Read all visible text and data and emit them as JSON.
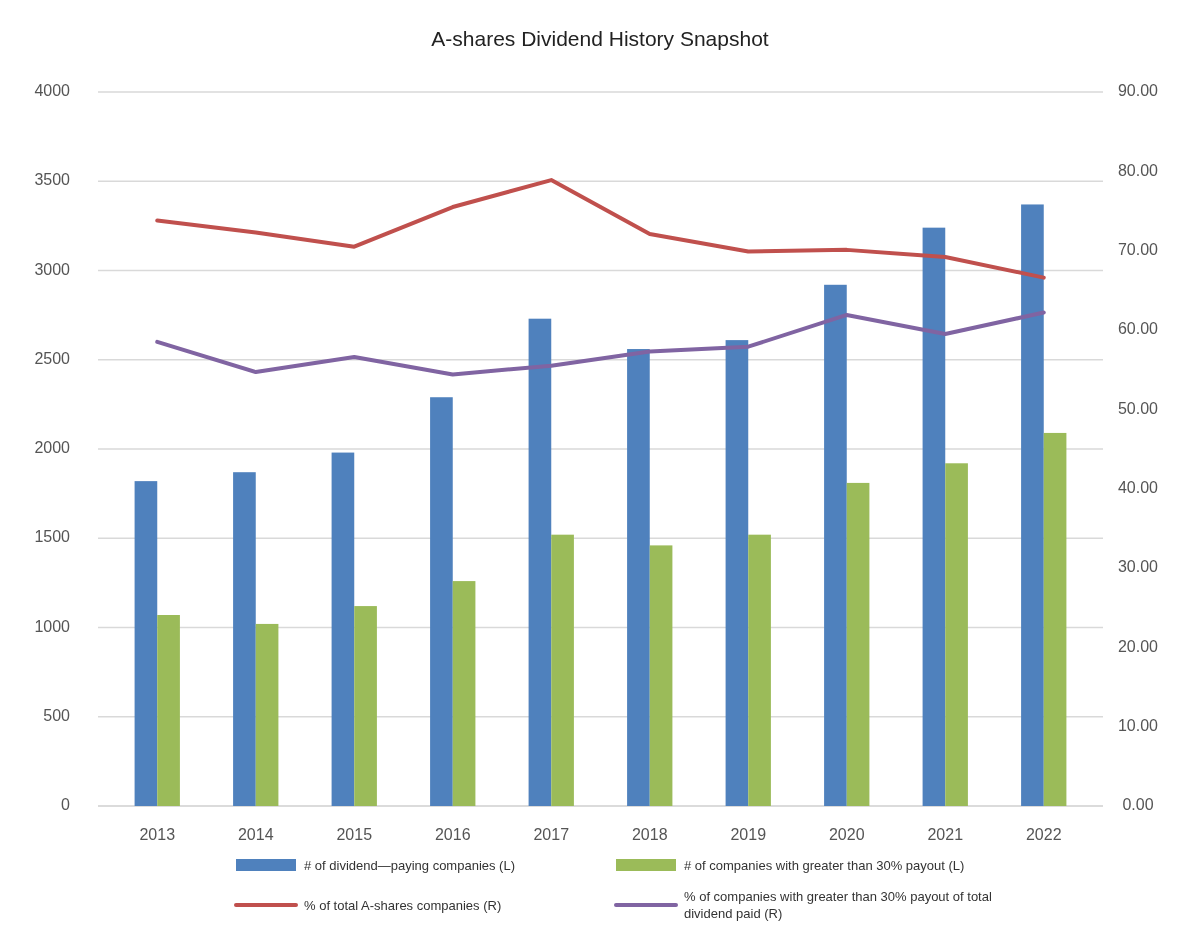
{
  "chart_data": {
    "type": "bar",
    "title": "A-shares Dividend History Snapshot",
    "categories": [
      "2013",
      "2014",
      "2015",
      "2016",
      "2017",
      "2018",
      "2019",
      "2020",
      "2021",
      "2022"
    ],
    "series": [
      {
        "name": "# of dividend—paying companies (L)",
        "color": "#4f81bd",
        "values": [
          1820,
          1870,
          1980,
          2290,
          2730,
          2560,
          2610,
          2920,
          3240,
          3370
        ]
      },
      {
        "name": "# of companies with greater than 30% payout (L)",
        "color": "#9bbb59",
        "values": [
          1070,
          1020,
          1120,
          1260,
          1520,
          1460,
          1520,
          1810,
          1920,
          2090
        ]
      },
      {
        "name": "% of total A-shares companies (R)",
        "type": "line",
        "axis": "y2",
        "color": "#c0504d",
        "values": [
          73.8,
          72.3,
          70.5,
          75.5,
          78.9,
          72.1,
          69.9,
          70.1,
          69.2,
          66.6
        ]
      },
      {
        "name": "% of companies with greater than 30% payout of total dividend paid (R)",
        "type": "line",
        "axis": "y2",
        "color": "#8064a2",
        "values": [
          58.5,
          54.7,
          56.6,
          54.4,
          55.5,
          57.3,
          57.9,
          61.9,
          59.5,
          62.2
        ]
      }
    ],
    "ylim": [
      0,
      4000
    ],
    "yticks": [
      0,
      500,
      1000,
      1500,
      2000,
      2500,
      3000,
      3500,
      4000
    ],
    "y2lim": [
      0,
      90
    ],
    "y2ticks": [
      {
        "value": 0,
        "label": "0.00"
      },
      {
        "value": 10,
        "label": "10.00"
      },
      {
        "value": 20,
        "label": "20.00"
      },
      {
        "value": 30,
        "label": "30.00"
      },
      {
        "value": 40,
        "label": "40.00"
      },
      {
        "value": 50,
        "label": "50.00"
      },
      {
        "value": 60,
        "label": "60.00"
      },
      {
        "value": 70,
        "label": "70.00"
      },
      {
        "value": 80,
        "label": "80.00"
      },
      {
        "value": 90,
        "label": "90.00"
      }
    ],
    "grid": "y",
    "legend": "bottom",
    "marker": "none",
    "line_style": "solid"
  }
}
